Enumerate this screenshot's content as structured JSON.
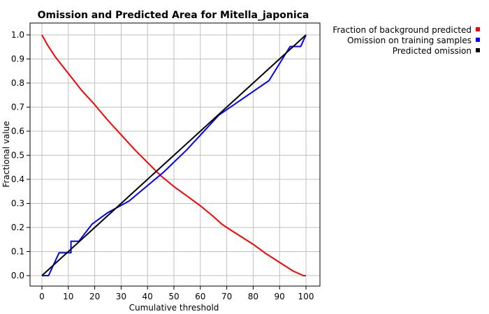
{
  "chart_data": {
    "type": "line",
    "title": "Omission and Predicted Area for Mitella_japonica",
    "xlabel": "Cumulative threshold",
    "ylabel": "Fractional value",
    "xlim": [
      0,
      100
    ],
    "ylim": [
      0,
      1
    ],
    "xticks": [
      "0",
      "10",
      "20",
      "30",
      "40",
      "50",
      "60",
      "70",
      "80",
      "90",
      "100"
    ],
    "yticks": [
      "0.0",
      "0.1",
      "0.2",
      "0.3",
      "0.4",
      "0.5",
      "0.6",
      "0.7",
      "0.8",
      "0.9",
      "1.0"
    ],
    "grid": true,
    "legend_position": "top-right-outside",
    "series": [
      {
        "name": "Fraction of background predicted",
        "color": "#ff0000",
        "x": [
          0,
          2,
          5,
          10,
          15,
          20,
          25,
          30,
          35,
          40,
          45,
          50,
          55,
          60,
          65,
          68,
          70,
          75,
          80,
          85,
          90,
          95,
          97,
          99,
          100
        ],
        "y": [
          1.0,
          0.96,
          0.91,
          0.84,
          0.77,
          0.71,
          0.645,
          0.585,
          0.525,
          0.47,
          0.415,
          0.37,
          0.33,
          0.29,
          0.245,
          0.215,
          0.2,
          0.165,
          0.13,
          0.09,
          0.055,
          0.02,
          0.01,
          0.0,
          0.0
        ]
      },
      {
        "name": "Omission on training samples",
        "color": "#0000ff",
        "x": [
          0,
          2.5,
          6.5,
          10,
          11,
          11,
          14,
          19,
          25,
          33,
          46,
          55,
          67,
          86,
          94,
          97,
          98,
          99,
          100
        ],
        "y": [
          0.0,
          0.0,
          0.095,
          0.095,
          0.095,
          0.143,
          0.143,
          0.214,
          0.262,
          0.31,
          0.429,
          0.524,
          0.667,
          0.81,
          0.952,
          0.952,
          0.952,
          0.976,
          1.0
        ]
      },
      {
        "name": "Predicted omission",
        "color": "#000000",
        "x": [
          0,
          100
        ],
        "y": [
          0.0,
          1.0
        ]
      }
    ]
  }
}
